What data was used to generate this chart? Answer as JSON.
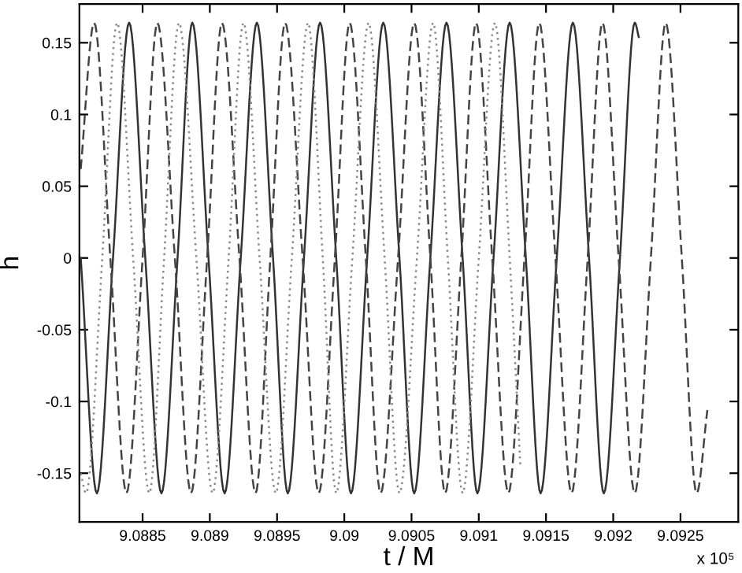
{
  "chart_data": {
    "type": "line",
    "xlabel": "t / M",
    "ylabel": "h",
    "xlim": [
      9.08803,
      9.09293
    ],
    "ylim": [
      -0.184,
      0.177
    ],
    "xticks": [
      9.0885,
      9.089,
      9.0895,
      9.09,
      9.0905,
      9.091,
      9.0915,
      9.092,
      9.0925
    ],
    "yticks": [
      -0.15,
      -0.1,
      -0.05,
      0,
      0.05,
      0.1,
      0.15
    ],
    "grid": false,
    "legend": false,
    "marker": "none",
    "annotations": [
      "x 10⁵"
    ],
    "series": [
      {
        "color": "#333333",
        "line_style": "solid",
        "x": [
          9.08804,
          9.08816,
          9.08828,
          9.0884,
          9.08852,
          9.08864,
          9.08876,
          9.08887,
          9.08899,
          9.08911,
          9.08923,
          9.08935,
          9.08947,
          9.08958,
          9.0897,
          9.08982,
          9.08994,
          9.09005,
          9.09017,
          9.09029,
          9.09041,
          9.09052,
          9.09064,
          9.09076,
          9.09088,
          9.09099,
          9.09111,
          9.09123,
          9.09135,
          9.09146,
          9.09158,
          9.0917,
          9.09182,
          9.09193,
          9.09205,
          9.09216,
          9.09219
        ],
        "values": [
          0,
          -0.164,
          0,
          0.164,
          0,
          -0.164,
          0,
          0.164,
          0,
          -0.164,
          0,
          0.164,
          0,
          -0.164,
          0,
          0.164,
          0,
          -0.164,
          0,
          0.164,
          0,
          -0.164,
          0,
          0.164,
          0,
          -0.164,
          0,
          0.164,
          0,
          -0.164,
          0,
          0.164,
          0,
          -0.164,
          0,
          0.164,
          0.154
        ]
      },
      {
        "color": "#444444",
        "line_style": "dashed",
        "x": [
          9.08804,
          9.08814,
          9.08826,
          9.08838,
          9.0885,
          9.08861,
          9.08874,
          9.08886,
          9.08898,
          9.08909,
          9.08922,
          9.08934,
          9.08945,
          9.08956,
          9.08969,
          9.08981,
          9.08993,
          9.09004,
          9.09016,
          9.09027,
          9.0904,
          9.09052,
          9.09064,
          9.09075,
          9.09087,
          9.09098,
          9.0911,
          9.09122,
          9.09134,
          9.09145,
          9.09157,
          9.09169,
          9.09181,
          9.09192,
          9.09204,
          9.09216,
          9.09228,
          9.09239,
          9.09251,
          9.09262,
          9.0927
        ],
        "values": [
          0.062,
          0.164,
          0,
          -0.164,
          0,
          0.164,
          0,
          -0.164,
          0,
          0.164,
          0,
          -0.164,
          0,
          0.164,
          0,
          -0.164,
          0,
          0.164,
          0,
          -0.164,
          0,
          0.164,
          0,
          -0.164,
          0,
          0.164,
          0,
          -0.164,
          0,
          0.164,
          0,
          -0.164,
          0,
          0.164,
          0,
          -0.164,
          0,
          0.164,
          0,
          -0.164,
          -0.106
        ]
      },
      {
        "color": "#8a8a8a",
        "line_style": "dotted",
        "x": [
          9.08804,
          9.08808,
          9.0882,
          9.08831,
          9.08843,
          9.08855,
          9.08866,
          9.08877,
          9.0889,
          9.08902,
          9.08914,
          9.08925,
          9.08937,
          9.08949,
          9.08961,
          9.08973,
          9.08984,
          9.08994,
          9.09006,
          9.09018,
          9.0903,
          9.09041,
          9.09054,
          9.09066,
          9.09077,
          9.09088,
          9.091,
          9.09112,
          9.09123,
          9.09131
        ],
        "values": [
          -0.15,
          -0.164,
          0,
          0.164,
          0,
          -0.164,
          0,
          0.164,
          0,
          -0.164,
          0,
          0.164,
          0,
          -0.164,
          0,
          0.164,
          0,
          -0.164,
          0,
          0.164,
          0,
          -0.164,
          0,
          0.164,
          0,
          -0.164,
          0,
          0.164,
          0,
          -0.146
        ]
      }
    ]
  }
}
